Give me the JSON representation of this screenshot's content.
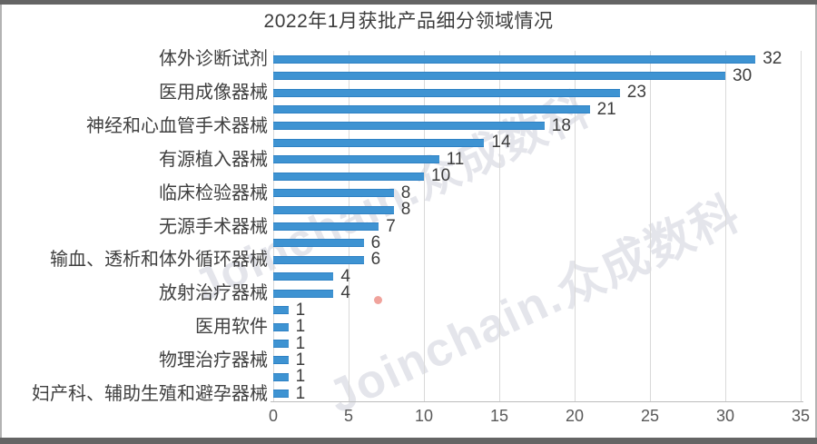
{
  "frame": {
    "background": "#ffffff",
    "edge_bar_color": "#656565",
    "side_border_color": "#b3b3b3"
  },
  "chart_data": {
    "type": "bar",
    "orientation": "horizontal",
    "title": "2022年1月获批产品细分领域情况",
    "categories": [
      "体外诊断试剂",
      "",
      "医用成像器械",
      "",
      "神经和心血管手术器械",
      "",
      "有源植入器械",
      "",
      "临床检验器械",
      "",
      "无源手术器械",
      "",
      "输血、透析和体外循环器械",
      "",
      "放射治疗器械",
      "",
      "医用软件",
      "",
      "物理治疗器械",
      "",
      "妇产科、辅助生殖和避孕器械"
    ],
    "values": [
      32,
      30,
      23,
      21,
      18,
      14,
      11,
      10,
      8,
      8,
      7,
      6,
      6,
      4,
      4,
      1,
      1,
      1,
      1,
      1,
      1
    ],
    "value_labels_shown": true,
    "xlabel": "",
    "ylabel": "",
    "xlim": [
      0,
      35
    ],
    "xticks": [
      0,
      5,
      10,
      15,
      20,
      25,
      30,
      35
    ],
    "grid": "vertical-gridlines",
    "legend": "none",
    "colors": {
      "bar": "#3E93D2",
      "bar_edge": "#2E81C4",
      "gridline": "#d9d9d9",
      "axis_line": "#bdbdbd",
      "title_text": "#3c3c3c",
      "category_text": "#404040",
      "value_text": "#3d3d3d",
      "tick_text": "#595959"
    }
  },
  "watermark": {
    "text": "Joinchain.众成数科",
    "color": "rgba(187,189,205,0.40)",
    "dot_color": "#e4574b"
  }
}
